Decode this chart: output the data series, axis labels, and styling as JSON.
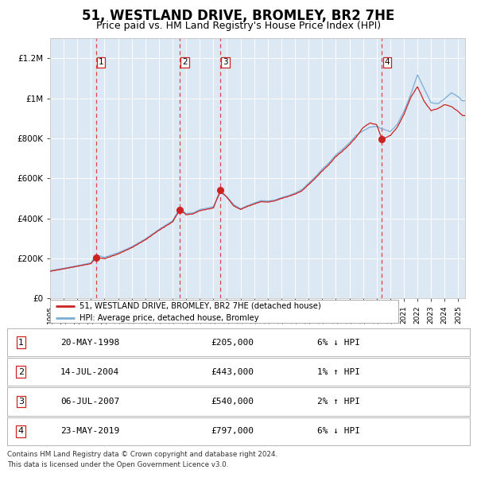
{
  "title": "51, WESTLAND DRIVE, BROMLEY, BR2 7HE",
  "subtitle": "Price paid vs. HM Land Registry's House Price Index (HPI)",
  "title_fontsize": 12,
  "subtitle_fontsize": 9,
  "plot_bg_color": "#dce9f5",
  "hpi_color": "#7aadd4",
  "price_color": "#cc2222",
  "sale_marker_color": "#cc2222",
  "dashed_line_color": "#dd3333",
  "transactions": [
    {
      "label": "1",
      "date_str": "20-MAY-1998",
      "date_x": 1998.38,
      "price": 205000,
      "pct": "6%",
      "dir": "↓"
    },
    {
      "label": "2",
      "date_str": "14-JUL-2004",
      "date_x": 2004.54,
      "price": 443000,
      "pct": "1%",
      "dir": "↑"
    },
    {
      "label": "3",
      "date_str": "06-JUL-2007",
      "date_x": 2007.51,
      "price": 540000,
      "pct": "2%",
      "dir": "↑"
    },
    {
      "label": "4",
      "date_str": "23-MAY-2019",
      "date_x": 2019.39,
      "price": 797000,
      "pct": "6%",
      "dir": "↓"
    }
  ],
  "ylim": [
    0,
    1300000
  ],
  "xlim": [
    1995.0,
    2025.5
  ],
  "yticks": [
    0,
    200000,
    400000,
    600000,
    800000,
    1000000,
    1200000
  ],
  "ytick_labels": [
    "£0",
    "£200K",
    "£400K",
    "£600K",
    "£800K",
    "£1M",
    "£1.2M"
  ],
  "xtick_years": [
    1995,
    1996,
    1997,
    1998,
    1999,
    2000,
    2001,
    2002,
    2003,
    2004,
    2005,
    2006,
    2007,
    2008,
    2009,
    2010,
    2011,
    2012,
    2013,
    2014,
    2015,
    2016,
    2017,
    2018,
    2019,
    2020,
    2021,
    2022,
    2023,
    2024,
    2025
  ],
  "legend_label_red": "51, WESTLAND DRIVE, BROMLEY, BR2 7HE (detached house)",
  "legend_label_blue": "HPI: Average price, detached house, Bromley",
  "footnote": "Contains HM Land Registry data © Crown copyright and database right 2024.\nThis data is licensed under the Open Government Licence v3.0.",
  "table_rows": [
    [
      "1",
      "20-MAY-1998",
      "£205,000",
      "6% ↓ HPI"
    ],
    [
      "2",
      "14-JUL-2004",
      "£443,000",
      "1% ↑ HPI"
    ],
    [
      "3",
      "06-JUL-2007",
      "£540,000",
      "2% ↑ HPI"
    ],
    [
      "4",
      "23-MAY-2019",
      "£797,000",
      "6% ↓ HPI"
    ]
  ],
  "hpi_anchors": [
    [
      1995.0,
      138000
    ],
    [
      1996.0,
      150000
    ],
    [
      1997.0,
      163000
    ],
    [
      1998.0,
      177000
    ],
    [
      1998.38,
      218000
    ],
    [
      1999.0,
      205000
    ],
    [
      2000.0,
      228000
    ],
    [
      2001.0,
      258000
    ],
    [
      2002.0,
      297000
    ],
    [
      2003.0,
      345000
    ],
    [
      2004.0,
      388000
    ],
    [
      2004.54,
      452000
    ],
    [
      2005.0,
      425000
    ],
    [
      2005.5,
      428000
    ],
    [
      2006.0,
      445000
    ],
    [
      2006.5,
      452000
    ],
    [
      2007.0,
      460000
    ],
    [
      2007.51,
      530000
    ],
    [
      2008.0,
      510000
    ],
    [
      2008.5,
      470000
    ],
    [
      2009.0,
      450000
    ],
    [
      2009.5,
      465000
    ],
    [
      2010.0,
      478000
    ],
    [
      2010.5,
      490000
    ],
    [
      2011.0,
      488000
    ],
    [
      2011.5,
      492000
    ],
    [
      2012.0,
      505000
    ],
    [
      2012.5,
      515000
    ],
    [
      2013.0,
      528000
    ],
    [
      2013.5,
      545000
    ],
    [
      2014.0,
      578000
    ],
    [
      2014.5,
      610000
    ],
    [
      2015.0,
      648000
    ],
    [
      2015.5,
      680000
    ],
    [
      2016.0,
      720000
    ],
    [
      2016.5,
      748000
    ],
    [
      2017.0,
      780000
    ],
    [
      2017.5,
      818000
    ],
    [
      2018.0,
      840000
    ],
    [
      2018.5,
      858000
    ],
    [
      2019.0,
      862000
    ],
    [
      2019.39,
      850000
    ],
    [
      2019.5,
      848000
    ],
    [
      2020.0,
      835000
    ],
    [
      2020.5,
      870000
    ],
    [
      2021.0,
      935000
    ],
    [
      2021.5,
      1020000
    ],
    [
      2022.0,
      1120000
    ],
    [
      2022.5,
      1050000
    ],
    [
      2023.0,
      980000
    ],
    [
      2023.5,
      975000
    ],
    [
      2024.0,
      1000000
    ],
    [
      2024.5,
      1030000
    ],
    [
      2025.0,
      1010000
    ],
    [
      2025.3,
      990000
    ]
  ],
  "price_anchors": [
    [
      1995.0,
      135000
    ],
    [
      1996.0,
      147000
    ],
    [
      1997.0,
      160000
    ],
    [
      1998.0,
      173000
    ],
    [
      1998.38,
      205000
    ],
    [
      1999.0,
      198000
    ],
    [
      2000.0,
      222000
    ],
    [
      2001.0,
      253000
    ],
    [
      2002.0,
      292000
    ],
    [
      2003.0,
      340000
    ],
    [
      2004.0,
      382000
    ],
    [
      2004.54,
      443000
    ],
    [
      2005.0,
      418000
    ],
    [
      2005.5,
      422000
    ],
    [
      2006.0,
      438000
    ],
    [
      2006.5,
      445000
    ],
    [
      2007.0,
      452000
    ],
    [
      2007.51,
      540000
    ],
    [
      2008.0,
      505000
    ],
    [
      2008.5,
      462000
    ],
    [
      2009.0,
      445000
    ],
    [
      2009.5,
      460000
    ],
    [
      2010.0,
      472000
    ],
    [
      2010.5,
      484000
    ],
    [
      2011.0,
      482000
    ],
    [
      2011.5,
      488000
    ],
    [
      2012.0,
      500000
    ],
    [
      2012.5,
      510000
    ],
    [
      2013.0,
      522000
    ],
    [
      2013.5,
      538000
    ],
    [
      2014.0,
      570000
    ],
    [
      2014.5,
      602000
    ],
    [
      2015.0,
      638000
    ],
    [
      2015.5,
      670000
    ],
    [
      2016.0,
      710000
    ],
    [
      2016.5,
      738000
    ],
    [
      2017.0,
      770000
    ],
    [
      2017.5,
      808000
    ],
    [
      2018.0,
      855000
    ],
    [
      2018.5,
      878000
    ],
    [
      2019.0,
      870000
    ],
    [
      2019.39,
      797000
    ],
    [
      2019.5,
      800000
    ],
    [
      2020.0,
      815000
    ],
    [
      2020.5,
      855000
    ],
    [
      2021.0,
      920000
    ],
    [
      2021.5,
      1005000
    ],
    [
      2022.0,
      1060000
    ],
    [
      2022.5,
      985000
    ],
    [
      2023.0,
      940000
    ],
    [
      2023.5,
      950000
    ],
    [
      2024.0,
      970000
    ],
    [
      2024.5,
      960000
    ],
    [
      2025.0,
      935000
    ],
    [
      2025.3,
      915000
    ]
  ]
}
